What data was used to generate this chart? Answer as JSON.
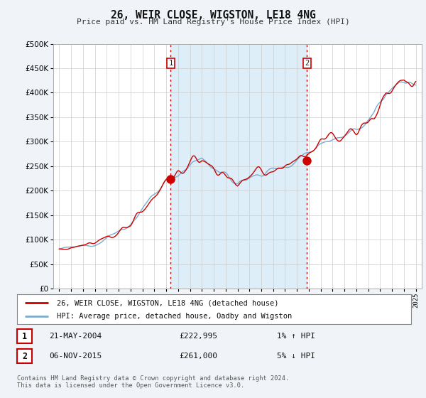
{
  "title": "26, WEIR CLOSE, WIGSTON, LE18 4NG",
  "subtitle": "Price paid vs. HM Land Registry's House Price Index (HPI)",
  "xlim": [
    1994.5,
    2025.5
  ],
  "ylim": [
    0,
    500000
  ],
  "yticks": [
    0,
    50000,
    100000,
    150000,
    200000,
    250000,
    300000,
    350000,
    400000,
    450000,
    500000
  ],
  "xticks": [
    1995,
    1996,
    1997,
    1998,
    1999,
    2000,
    2001,
    2002,
    2003,
    2004,
    2005,
    2006,
    2007,
    2008,
    2009,
    2010,
    2011,
    2012,
    2013,
    2014,
    2015,
    2016,
    2017,
    2018,
    2019,
    2020,
    2021,
    2022,
    2023,
    2024,
    2025
  ],
  "sale1_x": 2004.38,
  "sale1_y": 222995,
  "sale2_x": 2015.85,
  "sale2_y": 261000,
  "line_color_hpi": "#7aacce",
  "line_color_price": "#cc0000",
  "vline_color": "#cc0000",
  "shade_color": "#ddeef8",
  "background_color": "#f0f4f8",
  "plot_bg": "#ffffff",
  "legend_label1": "26, WEIR CLOSE, WIGSTON, LE18 4NG (detached house)",
  "legend_label2": "HPI: Average price, detached house, Oadby and Wigston",
  "sale1_date": "21-MAY-2004",
  "sale1_price": "£222,995",
  "sale1_hpi": "1% ↑ HPI",
  "sale2_date": "06-NOV-2015",
  "sale2_price": "£261,000",
  "sale2_hpi": "5% ↓ HPI",
  "footer": "Contains HM Land Registry data © Crown copyright and database right 2024.\nThis data is licensed under the Open Government Licence v3.0."
}
